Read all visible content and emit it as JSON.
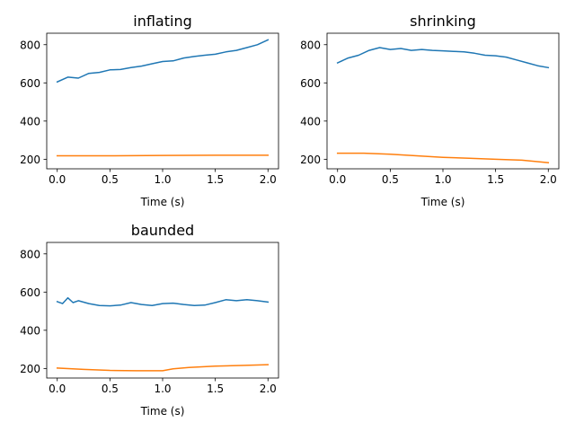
{
  "chart_data": [
    {
      "type": "line",
      "title": "inflating",
      "xlabel": "Time (s)",
      "ylabel": "",
      "xlim": [
        -0.1,
        2.1
      ],
      "ylim": [
        150,
        860
      ],
      "xticks": [
        "0.0",
        "0.5",
        "1.0",
        "1.5",
        "2.0"
      ],
      "yticks": [
        "200",
        "400",
        "600",
        "800"
      ],
      "grid": false,
      "series": [
        {
          "color": "#1f77b4",
          "x": [
            0.0,
            0.1,
            0.2,
            0.3,
            0.4,
            0.5,
            0.6,
            0.7,
            0.8,
            0.9,
            1.0,
            1.1,
            1.2,
            1.3,
            1.4,
            1.5,
            1.6,
            1.7,
            1.8,
            1.9,
            2.0
          ],
          "y": [
            605,
            630,
            625,
            650,
            655,
            668,
            670,
            680,
            688,
            700,
            712,
            715,
            730,
            738,
            745,
            750,
            762,
            770,
            785,
            800,
            825
          ]
        },
        {
          "color": "#ff7f0e",
          "x": [
            0.0,
            0.5,
            1.0,
            1.5,
            2.0
          ],
          "y": [
            218,
            218,
            220,
            221,
            221
          ]
        }
      ]
    },
    {
      "type": "line",
      "title": "shrinking",
      "xlabel": "Time (s)",
      "ylabel": "",
      "xlim": [
        -0.1,
        2.1
      ],
      "ylim": [
        150,
        860
      ],
      "xticks": [
        "0.0",
        "0.5",
        "1.0",
        "1.5",
        "2.0"
      ],
      "yticks": [
        "200",
        "400",
        "600",
        "800"
      ],
      "grid": false,
      "series": [
        {
          "color": "#1f77b4",
          "x": [
            0.0,
            0.1,
            0.2,
            0.3,
            0.4,
            0.5,
            0.6,
            0.7,
            0.8,
            0.9,
            1.0,
            1.1,
            1.2,
            1.3,
            1.4,
            1.5,
            1.6,
            1.7,
            1.8,
            1.9,
            2.0
          ],
          "y": [
            705,
            730,
            745,
            770,
            785,
            775,
            780,
            770,
            775,
            770,
            768,
            765,
            762,
            755,
            745,
            742,
            735,
            720,
            705,
            690,
            680
          ]
        },
        {
          "color": "#ff7f0e",
          "x": [
            0.0,
            0.25,
            0.5,
            0.75,
            1.0,
            1.25,
            1.5,
            1.75,
            2.0
          ],
          "y": [
            232,
            232,
            226,
            218,
            210,
            205,
            200,
            195,
            182
          ]
        }
      ]
    },
    {
      "type": "line",
      "title": "baunded",
      "xlabel": "Time (s)",
      "ylabel": "",
      "xlim": [
        -0.1,
        2.1
      ],
      "ylim": [
        150,
        860
      ],
      "xticks": [
        "0.0",
        "0.5",
        "1.0",
        "1.5",
        "2.0"
      ],
      "yticks": [
        "200",
        "400",
        "600",
        "800"
      ],
      "grid": false,
      "series": [
        {
          "color": "#1f77b4",
          "x": [
            0.0,
            0.05,
            0.1,
            0.15,
            0.2,
            0.3,
            0.4,
            0.5,
            0.6,
            0.7,
            0.8,
            0.9,
            1.0,
            1.1,
            1.2,
            1.3,
            1.4,
            1.5,
            1.6,
            1.7,
            1.8,
            1.9,
            2.0
          ],
          "y": [
            550,
            540,
            570,
            545,
            555,
            540,
            530,
            528,
            532,
            545,
            535,
            530,
            540,
            542,
            535,
            530,
            532,
            545,
            560,
            555,
            560,
            555,
            548
          ]
        },
        {
          "color": "#ff7f0e",
          "x": [
            0.0,
            0.25,
            0.5,
            0.75,
            1.0,
            1.1,
            1.25,
            1.5,
            1.75,
            2.0
          ],
          "y": [
            202,
            195,
            190,
            188,
            188,
            198,
            205,
            212,
            216,
            220
          ]
        }
      ]
    }
  ]
}
